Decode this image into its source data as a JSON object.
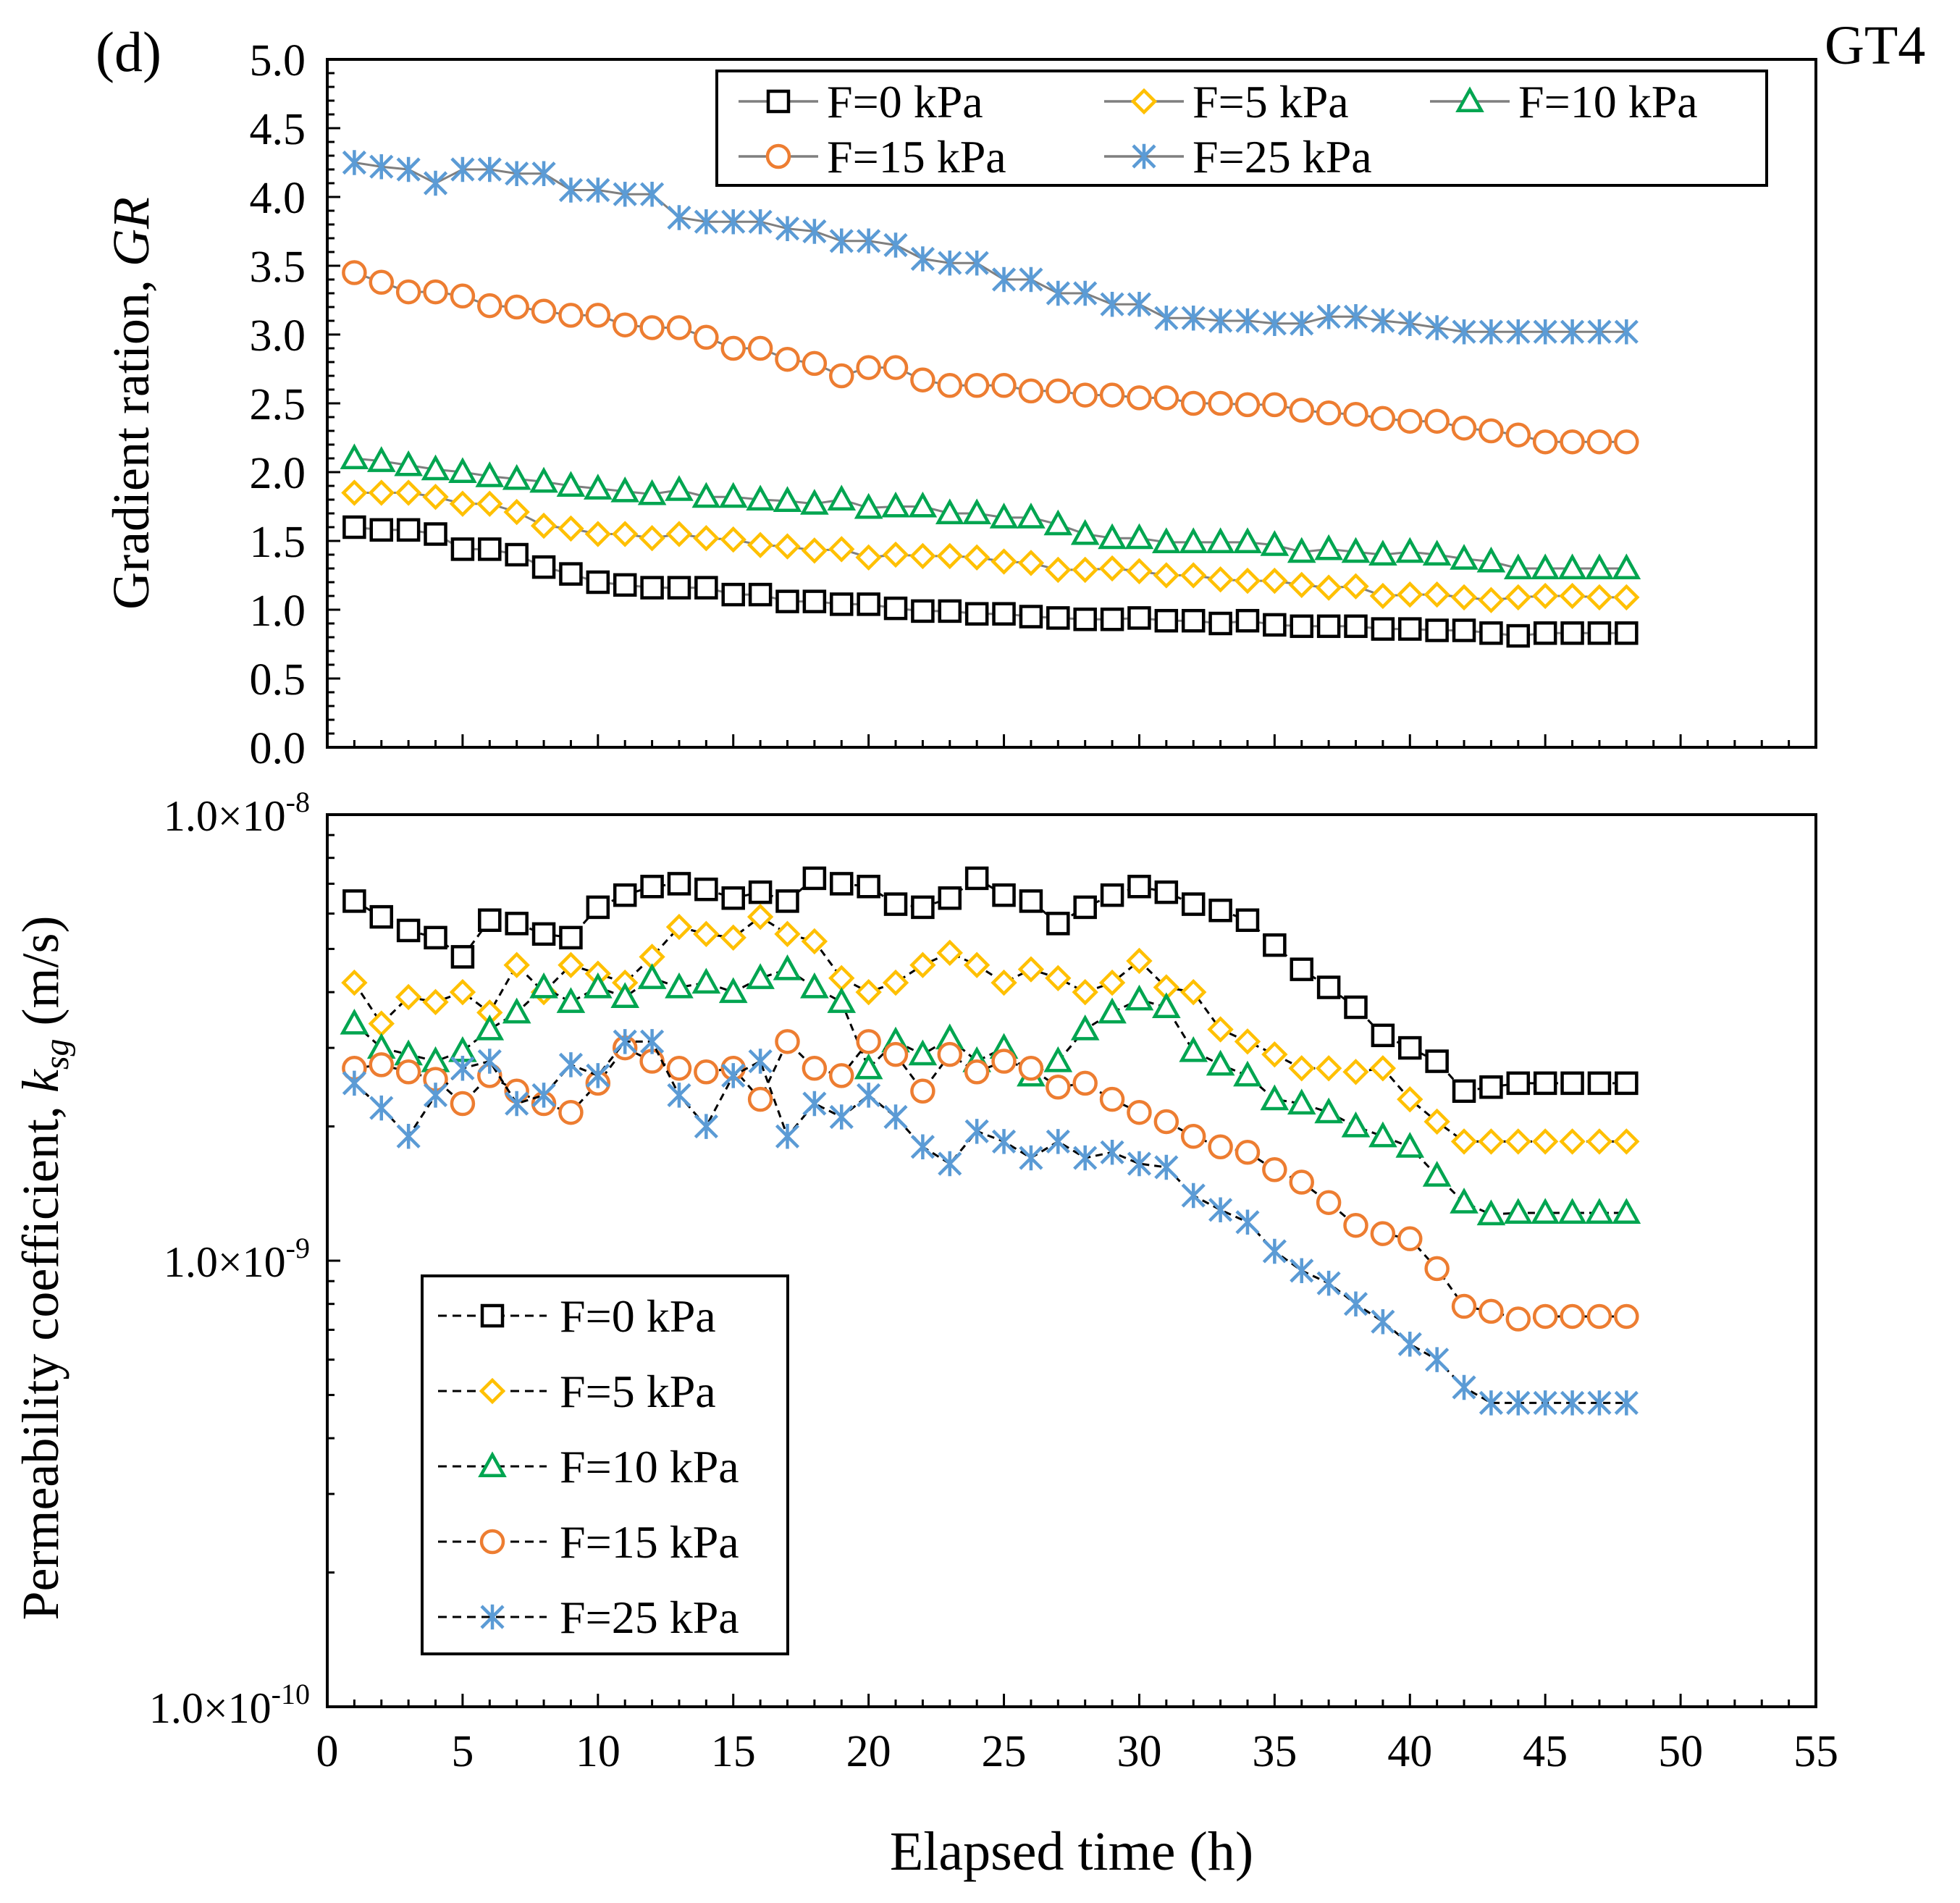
{
  "panel_label": "(d)",
  "sample_label": "GT4",
  "series_colors": {
    "F=0 kPa": "#000000",
    "F=5 kPa": "#FFC000",
    "F=10 kPa": "#00A550",
    "F=15 kPa": "#ED7D31",
    "F=25 kPa": "#5B9BD5"
  },
  "chart_data": [
    {
      "type": "line",
      "id": "gradient-ratio",
      "ylabel_main": "Gradient ration, ",
      "ylabel_italic": "GR",
      "xlabel": "",
      "xlim": [
        0,
        55
      ],
      "ylim": [
        0,
        5
      ],
      "yticks": [
        0.0,
        0.5,
        1.0,
        1.5,
        2.0,
        2.5,
        3.0,
        3.5,
        4.0,
        4.5,
        5.0
      ],
      "ytick_labels": [
        "0.0",
        "0.5",
        "1.0",
        "1.5",
        "2.0",
        "2.5",
        "3.0",
        "3.5",
        "4.0",
        "4.5",
        "5.0"
      ],
      "line_style": "solid-gray",
      "legend": {
        "position": "top-right",
        "entries": [
          {
            "label": "F=0 kPa",
            "marker": "square"
          },
          {
            "label": "F=5 kPa",
            "marker": "diamond"
          },
          {
            "label": "F=10 kPa",
            "marker": "triangle"
          },
          {
            "label": "F=15 kPa",
            "marker": "circle"
          },
          {
            "label": "F=25 kPa",
            "marker": "asterisk"
          }
        ]
      },
      "x": [
        1,
        2,
        3,
        4,
        5,
        6,
        7,
        8,
        9,
        10,
        11,
        12,
        13,
        14,
        15,
        16,
        17,
        18,
        19,
        20,
        21,
        22,
        23,
        24,
        25,
        26,
        27,
        28,
        29,
        30,
        31,
        32,
        33,
        34,
        35,
        36,
        37,
        38,
        39,
        40,
        41,
        42,
        43,
        44,
        45,
        46,
        47,
        48
      ],
      "series": [
        {
          "name": "F=0 kPa",
          "marker": "square",
          "values": [
            1.6,
            1.58,
            1.58,
            1.55,
            1.44,
            1.44,
            1.4,
            1.31,
            1.26,
            1.2,
            1.18,
            1.16,
            1.16,
            1.16,
            1.11,
            1.11,
            1.06,
            1.06,
            1.04,
            1.04,
            1.01,
            0.99,
            0.99,
            0.97,
            0.97,
            0.95,
            0.94,
            0.93,
            0.93,
            0.94,
            0.92,
            0.92,
            0.9,
            0.92,
            0.89,
            0.88,
            0.88,
            0.88,
            0.86,
            0.86,
            0.85,
            0.85,
            0.83,
            0.81,
            0.83,
            0.83,
            0.83,
            0.83
          ]
        },
        {
          "name": "F=5 kPa",
          "marker": "diamond",
          "values": [
            1.85,
            1.85,
            1.85,
            1.82,
            1.77,
            1.77,
            1.71,
            1.61,
            1.59,
            1.55,
            1.55,
            1.52,
            1.55,
            1.52,
            1.51,
            1.47,
            1.46,
            1.43,
            1.44,
            1.38,
            1.4,
            1.39,
            1.39,
            1.38,
            1.35,
            1.34,
            1.29,
            1.29,
            1.3,
            1.28,
            1.25,
            1.25,
            1.22,
            1.21,
            1.21,
            1.18,
            1.16,
            1.17,
            1.1,
            1.11,
            1.11,
            1.09,
            1.07,
            1.09,
            1.1,
            1.1,
            1.09,
            1.09
          ]
        },
        {
          "name": "F=10 kPa",
          "marker": "triangle",
          "values": [
            2.1,
            2.08,
            2.05,
            2.02,
            2.0,
            1.97,
            1.95,
            1.93,
            1.9,
            1.88,
            1.86,
            1.84,
            1.87,
            1.82,
            1.82,
            1.8,
            1.79,
            1.77,
            1.8,
            1.74,
            1.75,
            1.75,
            1.7,
            1.7,
            1.67,
            1.67,
            1.62,
            1.55,
            1.52,
            1.52,
            1.49,
            1.49,
            1.49,
            1.49,
            1.47,
            1.42,
            1.44,
            1.42,
            1.4,
            1.42,
            1.4,
            1.37,
            1.35,
            1.3,
            1.3,
            1.3,
            1.3,
            1.3
          ]
        },
        {
          "name": "F=15 kPa",
          "marker": "circle",
          "values": [
            3.45,
            3.38,
            3.31,
            3.31,
            3.28,
            3.21,
            3.2,
            3.17,
            3.14,
            3.14,
            3.07,
            3.05,
            3.05,
            2.98,
            2.9,
            2.9,
            2.82,
            2.79,
            2.7,
            2.76,
            2.76,
            2.67,
            2.63,
            2.63,
            2.63,
            2.59,
            2.59,
            2.56,
            2.56,
            2.54,
            2.54,
            2.5,
            2.5,
            2.49,
            2.49,
            2.45,
            2.43,
            2.42,
            2.39,
            2.37,
            2.37,
            2.32,
            2.3,
            2.27,
            2.22,
            2.22,
            2.22,
            2.22
          ]
        },
        {
          "name": "F=25 kPa",
          "marker": "asterisk",
          "values": [
            4.25,
            4.22,
            4.2,
            4.1,
            4.2,
            4.2,
            4.17,
            4.17,
            4.05,
            4.05,
            4.02,
            4.02,
            3.85,
            3.82,
            3.82,
            3.82,
            3.77,
            3.75,
            3.68,
            3.68,
            3.65,
            3.55,
            3.52,
            3.52,
            3.4,
            3.4,
            3.3,
            3.3,
            3.22,
            3.22,
            3.12,
            3.12,
            3.1,
            3.1,
            3.08,
            3.08,
            3.13,
            3.13,
            3.1,
            3.08,
            3.05,
            3.02,
            3.02,
            3.02,
            3.02,
            3.02,
            3.02,
            3.02
          ]
        }
      ]
    },
    {
      "type": "line",
      "id": "permeability",
      "ylabel_main": "Permeability  coefficient, ",
      "ylabel_italic": "k",
      "ylabel_sub": "sg",
      "ylabel_unit": " (m/s)",
      "xlabel": "Elapsed time (h)",
      "xlim": [
        0,
        55
      ],
      "xticks": [
        0,
        5,
        10,
        15,
        20,
        25,
        30,
        35,
        40,
        45,
        50,
        55
      ],
      "xtick_labels": [
        "0",
        "5",
        "10",
        "15",
        "20",
        "25",
        "30",
        "35",
        "40",
        "45",
        "50",
        "55"
      ],
      "yscale": "log",
      "ylim": [
        1e-10,
        1e-08
      ],
      "ytick_labels": [
        {
          "value": 1e-08,
          "mantissa": "1.0×10",
          "exponent": "-8"
        },
        {
          "value": 1e-09,
          "mantissa": "1.0×10",
          "exponent": "-9"
        },
        {
          "value": 1e-10,
          "mantissa": "1.0×10",
          "exponent": "-10"
        }
      ],
      "line_style": "dashed-black",
      "legend": {
        "position": "bottom-left",
        "entries": [
          {
            "label": "F=0 kPa",
            "marker": "square"
          },
          {
            "label": "F=5 kPa",
            "marker": "diamond"
          },
          {
            "label": "F=10 kPa",
            "marker": "triangle"
          },
          {
            "label": "F=15 kPa",
            "marker": "circle"
          },
          {
            "label": "F=25 kPa",
            "marker": "asterisk"
          }
        ]
      },
      "x": [
        1,
        2,
        3,
        4,
        5,
        6,
        7,
        8,
        9,
        10,
        11,
        12,
        13,
        14,
        15,
        16,
        17,
        18,
        19,
        20,
        21,
        22,
        23,
        24,
        25,
        26,
        27,
        28,
        29,
        30,
        31,
        32,
        33,
        34,
        35,
        36,
        37,
        38,
        39,
        40,
        41,
        42,
        43,
        44,
        45,
        46,
        47,
        48
      ],
      "series": [
        {
          "name": "F=0 kPa",
          "marker": "square",
          "values": [
            6.4e-09,
            5.9e-09,
            5.5e-09,
            5.3e-09,
            4.8e-09,
            5.8e-09,
            5.7e-09,
            5.4e-09,
            5.3e-09,
            6.2e-09,
            6.6e-09,
            6.9e-09,
            7e-09,
            6.8e-09,
            6.5e-09,
            6.7e-09,
            6.4e-09,
            7.2e-09,
            7e-09,
            6.9e-09,
            6.3e-09,
            6.2e-09,
            6.5e-09,
            7.2e-09,
            6.6e-09,
            6.4e-09,
            5.7e-09,
            6.2e-09,
            6.6e-09,
            6.9e-09,
            6.7e-09,
            6.3e-09,
            6.1e-09,
            5.8e-09,
            5.1e-09,
            4.5e-09,
            4.1e-09,
            3.7e-09,
            3.2e-09,
            3e-09,
            2.8e-09,
            2.4e-09,
            2.45e-09,
            2.5e-09,
            2.5e-09,
            2.5e-09,
            2.5e-09,
            2.5e-09
          ]
        },
        {
          "name": "F=5 kPa",
          "marker": "diamond",
          "values": [
            4.2e-09,
            3.4e-09,
            3.9e-09,
            3.8e-09,
            4e-09,
            3.6e-09,
            4.6e-09,
            4e-09,
            4.6e-09,
            4.4e-09,
            4.2e-09,
            4.8e-09,
            5.6e-09,
            5.4e-09,
            5.3e-09,
            5.9e-09,
            5.4e-09,
            5.2e-09,
            4.3e-09,
            4e-09,
            4.2e-09,
            4.6e-09,
            4.9e-09,
            4.6e-09,
            4.2e-09,
            4.5e-09,
            4.3e-09,
            4e-09,
            4.2e-09,
            4.7e-09,
            4.1e-09,
            4e-09,
            3.3e-09,
            3.1e-09,
            2.9e-09,
            2.7e-09,
            2.7e-09,
            2.65e-09,
            2.7e-09,
            2.3e-09,
            2.05e-09,
            1.85e-09,
            1.85e-09,
            1.85e-09,
            1.85e-09,
            1.85e-09,
            1.85e-09,
            1.85e-09
          ]
        },
        {
          "name": "F=10 kPa",
          "marker": "triangle",
          "values": [
            3.4e-09,
            3e-09,
            2.9e-09,
            2.8e-09,
            2.95e-09,
            3.3e-09,
            3.6e-09,
            4.1e-09,
            3.8e-09,
            4.1e-09,
            3.9e-09,
            4.3e-09,
            4.1e-09,
            4.2e-09,
            4e-09,
            4.3e-09,
            4.5e-09,
            4.1e-09,
            3.8e-09,
            2.7e-09,
            3.1e-09,
            2.9e-09,
            3.15e-09,
            2.8e-09,
            3e-09,
            2.6e-09,
            2.8e-09,
            3.3e-09,
            3.6e-09,
            3.85e-09,
            3.7e-09,
            2.95e-09,
            2.75e-09,
            2.6e-09,
            2.3e-09,
            2.25e-09,
            2.15e-09,
            2e-09,
            1.9e-09,
            1.8e-09,
            1.55e-09,
            1.35e-09,
            1.27e-09,
            1.28e-09,
            1.28e-09,
            1.28e-09,
            1.28e-09,
            1.28e-09
          ]
        },
        {
          "name": "F=15 kPa",
          "marker": "circle",
          "values": [
            2.7e-09,
            2.75e-09,
            2.65e-09,
            2.55e-09,
            2.25e-09,
            2.6e-09,
            2.4e-09,
            2.25e-09,
            2.15e-09,
            2.5e-09,
            3e-09,
            2.8e-09,
            2.7e-09,
            2.65e-09,
            2.7e-09,
            2.3e-09,
            3.1e-09,
            2.7e-09,
            2.6e-09,
            3.1e-09,
            2.9e-09,
            2.4e-09,
            2.9e-09,
            2.65e-09,
            2.8e-09,
            2.7e-09,
            2.45e-09,
            2.5e-09,
            2.3e-09,
            2.15e-09,
            2.05e-09,
            1.9e-09,
            1.8e-09,
            1.75e-09,
            1.6e-09,
            1.5e-09,
            1.35e-09,
            1.2e-09,
            1.15e-09,
            1.12e-09,
            9.6e-10,
            7.9e-10,
            7.7e-10,
            7.4e-10,
            7.5e-10,
            7.5e-10,
            7.5e-10,
            7.5e-10
          ]
        },
        {
          "name": "F=25 kPa",
          "marker": "asterisk",
          "values": [
            2.5e-09,
            2.2e-09,
            1.9e-09,
            2.35e-09,
            2.7e-09,
            2.8e-09,
            2.25e-09,
            2.35e-09,
            2.75e-09,
            2.6e-09,
            3.1e-09,
            3.1e-09,
            2.35e-09,
            2e-09,
            2.6e-09,
            2.8e-09,
            1.9e-09,
            2.25e-09,
            2.1e-09,
            2.35e-09,
            2.1e-09,
            1.8e-09,
            1.65e-09,
            1.95e-09,
            1.85e-09,
            1.7e-09,
            1.85e-09,
            1.7e-09,
            1.75e-09,
            1.65e-09,
            1.62e-09,
            1.4e-09,
            1.3e-09,
            1.22e-09,
            1.05e-09,
            9.5e-10,
            8.9e-10,
            8e-10,
            7.3e-10,
            6.5e-10,
            6e-10,
            5.2e-10,
            4.8e-10,
            4.8e-10,
            4.8e-10,
            4.8e-10,
            4.8e-10,
            4.8e-10
          ]
        }
      ]
    }
  ]
}
